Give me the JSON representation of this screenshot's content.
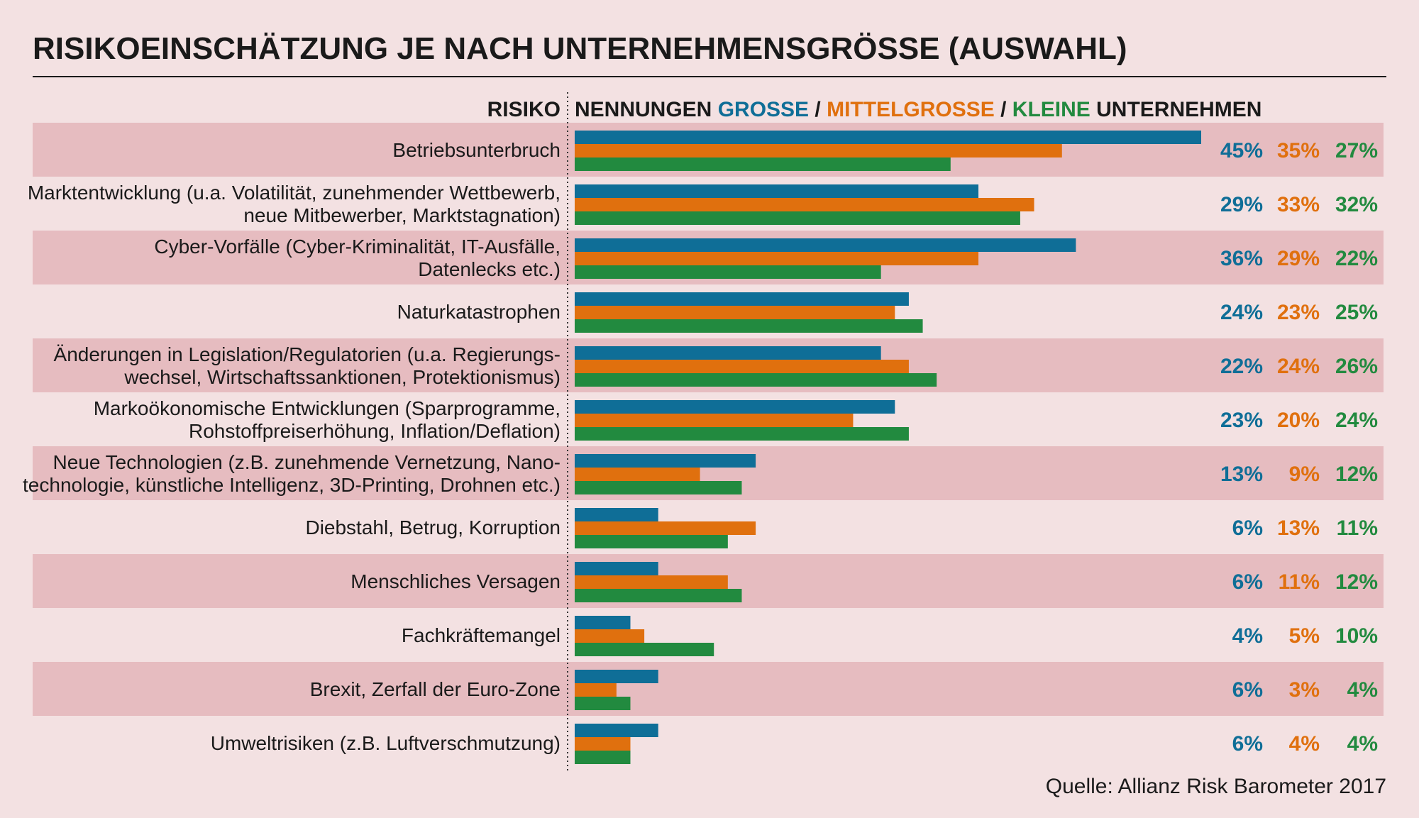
{
  "chart_data": {
    "type": "bar",
    "orientation": "horizontal",
    "title": "RISIKOEINSCHÄTZUNG JE NACH UNTERNEHMENSGRÖSSE (AUSWAHL)",
    "category_header": "RISIKO",
    "value_header": {
      "prefix": "NENNUNGEN ",
      "parts": [
        {
          "text": "GROSSE",
          "color": "#0f6e97"
        },
        {
          "text": " / ",
          "color": "#1a1a1a"
        },
        {
          "text": "MITTELGROSSE",
          "color": "#e0700e"
        },
        {
          "text": " / ",
          "color": "#1a1a1a"
        },
        {
          "text": "KLEINE",
          "color": "#228a3f"
        },
        {
          "text": " UNTERNEHMEN",
          "color": "#1a1a1a"
        }
      ]
    },
    "source": "Quelle: Allianz Risk Barometer 2017",
    "xlim": [
      0,
      45
    ],
    "grid": false,
    "legend": "none",
    "colors": {
      "background": "#f3e1e2",
      "band": "#e6bcc0",
      "text": "#1a1a1a"
    },
    "categories": [
      [
        "Betriebsunterbruch"
      ],
      [
        "Marktentwicklung (u.a. Volatilität, zunehmender Wettbewerb,",
        "neue Mitbewerber, Marktstagnation)"
      ],
      [
        "Cyber-Vorfälle (Cyber-Kriminalität, IT-Ausfälle,",
        "Datenlecks etc.)"
      ],
      [
        "Naturkatastrophen"
      ],
      [
        "Änderungen in Legislation/Regulatorien (u.a. Regierungs-",
        "wechsel, Wirtschaftssanktionen, Protektionismus)"
      ],
      [
        "Markoökonomische Entwicklungen (Sparprogramme,",
        "Rohstoffpreiserhöhung, Inflation/Deflation)"
      ],
      [
        "Neue Technologien (z.B. zunehmende Vernetzung, Nano-",
        "technologie, künstliche Intelligenz, 3D-Printing, Drohnen etc.)"
      ],
      [
        "Diebstahl, Betrug, Korruption"
      ],
      [
        "Menschliches Versagen"
      ],
      [
        "Fachkräftemangel"
      ],
      [
        "Brexit, Zerfall der Euro-Zone"
      ],
      [
        "Umweltrisiken (z.B. Luftverschmutzung)"
      ]
    ],
    "series": [
      {
        "name": "GROSSE",
        "color": "#0f6e97",
        "values": [
          45,
          29,
          36,
          24,
          22,
          23,
          13,
          6,
          6,
          4,
          6,
          6
        ]
      },
      {
        "name": "MITTELGROSSE",
        "color": "#e0700e",
        "values": [
          35,
          33,
          29,
          23,
          24,
          20,
          9,
          13,
          11,
          5,
          3,
          4
        ]
      },
      {
        "name": "KLEINE",
        "color": "#228a3f",
        "values": [
          27,
          32,
          22,
          25,
          26,
          24,
          12,
          11,
          12,
          10,
          4,
          4
        ]
      }
    ],
    "value_suffix": "%"
  }
}
